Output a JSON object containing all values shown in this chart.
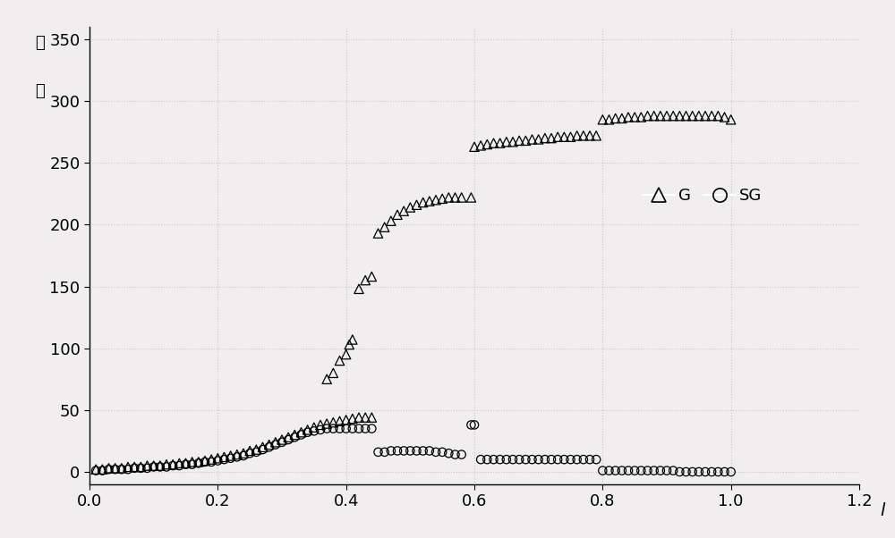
{
  "title": "",
  "xlabel": "l",
  "ylabel_chars": [
    "规",
    "模"
  ],
  "xlim": [
    0,
    1.2
  ],
  "ylim": [
    -10,
    360
  ],
  "xticks": [
    0,
    0.2,
    0.4,
    0.6,
    0.8,
    1.0,
    1.2
  ],
  "yticks": [
    0,
    50,
    100,
    150,
    200,
    250,
    300,
    350
  ],
  "background_color": "#f0eeee",
  "grid_color": "#c8c8c8",
  "G_data": [
    [
      0.01,
      2
    ],
    [
      0.02,
      2
    ],
    [
      0.03,
      3
    ],
    [
      0.04,
      3
    ],
    [
      0.05,
      3
    ],
    [
      0.06,
      4
    ],
    [
      0.07,
      4
    ],
    [
      0.08,
      4
    ],
    [
      0.09,
      5
    ],
    [
      0.1,
      5
    ],
    [
      0.11,
      5
    ],
    [
      0.12,
      6
    ],
    [
      0.13,
      6
    ],
    [
      0.14,
      7
    ],
    [
      0.15,
      7
    ],
    [
      0.16,
      8
    ],
    [
      0.17,
      8
    ],
    [
      0.18,
      9
    ],
    [
      0.19,
      10
    ],
    [
      0.2,
      11
    ],
    [
      0.21,
      12
    ],
    [
      0.22,
      13
    ],
    [
      0.23,
      14
    ],
    [
      0.24,
      15
    ],
    [
      0.25,
      17
    ],
    [
      0.26,
      18
    ],
    [
      0.27,
      20
    ],
    [
      0.28,
      22
    ],
    [
      0.29,
      24
    ],
    [
      0.3,
      26
    ],
    [
      0.31,
      28
    ],
    [
      0.32,
      30
    ],
    [
      0.33,
      32
    ],
    [
      0.34,
      34
    ],
    [
      0.35,
      36
    ],
    [
      0.36,
      38
    ],
    [
      0.37,
      39
    ],
    [
      0.38,
      40
    ],
    [
      0.39,
      41
    ],
    [
      0.4,
      42
    ],
    [
      0.41,
      43
    ],
    [
      0.42,
      44
    ],
    [
      0.43,
      44
    ],
    [
      0.44,
      44
    ],
    [
      0.37,
      75
    ],
    [
      0.38,
      80
    ],
    [
      0.39,
      90
    ],
    [
      0.4,
      95
    ],
    [
      0.405,
      103
    ],
    [
      0.41,
      107
    ],
    [
      0.42,
      148
    ],
    [
      0.43,
      155
    ],
    [
      0.44,
      158
    ],
    [
      0.45,
      193
    ],
    [
      0.46,
      198
    ],
    [
      0.47,
      203
    ],
    [
      0.48,
      208
    ],
    [
      0.49,
      211
    ],
    [
      0.5,
      214
    ],
    [
      0.51,
      216
    ],
    [
      0.52,
      218
    ],
    [
      0.53,
      219
    ],
    [
      0.54,
      220
    ],
    [
      0.55,
      221
    ],
    [
      0.56,
      222
    ],
    [
      0.57,
      222
    ],
    [
      0.58,
      222
    ],
    [
      0.595,
      222
    ],
    [
      0.6,
      263
    ],
    [
      0.61,
      264
    ],
    [
      0.62,
      265
    ],
    [
      0.63,
      266
    ],
    [
      0.64,
      266
    ],
    [
      0.65,
      267
    ],
    [
      0.66,
      267
    ],
    [
      0.67,
      268
    ],
    [
      0.68,
      268
    ],
    [
      0.69,
      269
    ],
    [
      0.7,
      269
    ],
    [
      0.71,
      270
    ],
    [
      0.72,
      270
    ],
    [
      0.73,
      271
    ],
    [
      0.74,
      271
    ],
    [
      0.75,
      271
    ],
    [
      0.76,
      272
    ],
    [
      0.77,
      272
    ],
    [
      0.78,
      272
    ],
    [
      0.79,
      272
    ],
    [
      0.8,
      285
    ],
    [
      0.81,
      285
    ],
    [
      0.82,
      286
    ],
    [
      0.83,
      286
    ],
    [
      0.84,
      287
    ],
    [
      0.85,
      287
    ],
    [
      0.86,
      287
    ],
    [
      0.87,
      288
    ],
    [
      0.88,
      288
    ],
    [
      0.89,
      288
    ],
    [
      0.9,
      288
    ],
    [
      0.91,
      288
    ],
    [
      0.92,
      288
    ],
    [
      0.93,
      288
    ],
    [
      0.94,
      288
    ],
    [
      0.95,
      288
    ],
    [
      0.96,
      288
    ],
    [
      0.97,
      288
    ],
    [
      0.98,
      288
    ],
    [
      0.99,
      287
    ],
    [
      1.0,
      285
    ]
  ],
  "SG_data": [
    [
      0.01,
      1
    ],
    [
      0.02,
      1
    ],
    [
      0.03,
      2
    ],
    [
      0.04,
      2
    ],
    [
      0.05,
      2
    ],
    [
      0.06,
      2
    ],
    [
      0.07,
      3
    ],
    [
      0.08,
      3
    ],
    [
      0.09,
      3
    ],
    [
      0.1,
      4
    ],
    [
      0.11,
      4
    ],
    [
      0.12,
      4
    ],
    [
      0.13,
      5
    ],
    [
      0.14,
      5
    ],
    [
      0.15,
      6
    ],
    [
      0.16,
      6
    ],
    [
      0.17,
      7
    ],
    [
      0.18,
      8
    ],
    [
      0.19,
      8
    ],
    [
      0.2,
      9
    ],
    [
      0.21,
      10
    ],
    [
      0.22,
      11
    ],
    [
      0.23,
      12
    ],
    [
      0.24,
      13
    ],
    [
      0.25,
      15
    ],
    [
      0.26,
      16
    ],
    [
      0.27,
      18
    ],
    [
      0.28,
      20
    ],
    [
      0.29,
      22
    ],
    [
      0.3,
      24
    ],
    [
      0.31,
      26
    ],
    [
      0.32,
      28
    ],
    [
      0.33,
      30
    ],
    [
      0.34,
      32
    ],
    [
      0.35,
      33
    ],
    [
      0.36,
      34
    ],
    [
      0.37,
      35
    ],
    [
      0.38,
      35
    ],
    [
      0.39,
      35
    ],
    [
      0.4,
      35
    ],
    [
      0.41,
      35
    ],
    [
      0.42,
      35
    ],
    [
      0.43,
      35
    ],
    [
      0.44,
      35
    ],
    [
      0.45,
      16
    ],
    [
      0.46,
      16
    ],
    [
      0.47,
      17
    ],
    [
      0.48,
      17
    ],
    [
      0.49,
      17
    ],
    [
      0.5,
      17
    ],
    [
      0.51,
      17
    ],
    [
      0.52,
      17
    ],
    [
      0.53,
      17
    ],
    [
      0.54,
      16
    ],
    [
      0.55,
      16
    ],
    [
      0.56,
      15
    ],
    [
      0.57,
      14
    ],
    [
      0.58,
      14
    ],
    [
      0.595,
      38
    ],
    [
      0.6,
      38
    ],
    [
      0.61,
      10
    ],
    [
      0.62,
      10
    ],
    [
      0.63,
      10
    ],
    [
      0.64,
      10
    ],
    [
      0.65,
      10
    ],
    [
      0.66,
      10
    ],
    [
      0.67,
      10
    ],
    [
      0.68,
      10
    ],
    [
      0.69,
      10
    ],
    [
      0.7,
      10
    ],
    [
      0.71,
      10
    ],
    [
      0.72,
      10
    ],
    [
      0.73,
      10
    ],
    [
      0.74,
      10
    ],
    [
      0.75,
      10
    ],
    [
      0.76,
      10
    ],
    [
      0.77,
      10
    ],
    [
      0.78,
      10
    ],
    [
      0.79,
      10
    ],
    [
      0.8,
      1
    ],
    [
      0.81,
      1
    ],
    [
      0.82,
      1
    ],
    [
      0.83,
      1
    ],
    [
      0.84,
      1
    ],
    [
      0.85,
      1
    ],
    [
      0.86,
      1
    ],
    [
      0.87,
      1
    ],
    [
      0.88,
      1
    ],
    [
      0.89,
      1
    ],
    [
      0.9,
      1
    ],
    [
      0.91,
      1
    ],
    [
      0.92,
      0
    ],
    [
      0.93,
      0
    ],
    [
      0.94,
      0
    ],
    [
      0.95,
      0
    ],
    [
      0.96,
      0
    ],
    [
      0.97,
      0
    ],
    [
      0.98,
      0
    ],
    [
      0.99,
      0
    ],
    [
      1.0,
      0
    ]
  ]
}
